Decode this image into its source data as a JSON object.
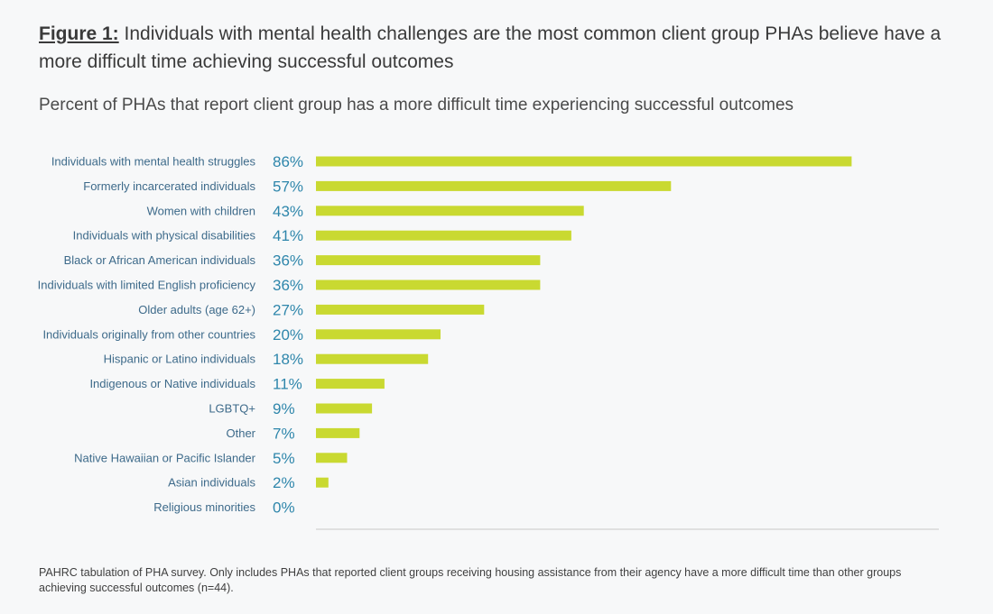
{
  "figure": {
    "label": "Figure 1:",
    "title": " Individuals with mental health challenges are the most common client group PHAs believe have a more difficult time achieving successful outcomes"
  },
  "colors": {
    "bar": "#c9d931",
    "value_text": "#2e86ab",
    "category_text": "#3d6a8a",
    "axis": "#c8c8c8"
  },
  "chart_data": {
    "type": "bar",
    "orientation": "horizontal",
    "title": "Percent of PHAs that report client group has a more difficult time experiencing successful outcomes",
    "categories": [
      "Individuals with mental health struggles",
      "Formerly incarcerated individuals",
      "Women with children",
      "Individuals with physical disabilities",
      "Black or African American individuals",
      "Individuals with limited English proficiency",
      "Older adults (age 62+)",
      "Individuals originally from other countries",
      "Hispanic or Latino individuals",
      "Indigenous or Native individuals",
      "LGBTQ+",
      "Other",
      "Native Hawaiian or Pacific Islander",
      "Asian individuals",
      "Religious minorities"
    ],
    "values": [
      86,
      57,
      43,
      41,
      36,
      36,
      27,
      20,
      18,
      11,
      9,
      7,
      5,
      2,
      0
    ],
    "value_labels": [
      "86%",
      "57%",
      "43%",
      "41%",
      "36%",
      "36%",
      "27%",
      "20%",
      "18%",
      "11%",
      "9%",
      "7%",
      "5%",
      "2%",
      "0%"
    ],
    "xlim": [
      0,
      100
    ],
    "grid": false,
    "legend": "none"
  },
  "footnote": "PAHRC tabulation of PHA survey. Only includes PHAs that reported client groups receiving housing assistance from their agency have a more difficult time than other groups achieving successful outcomes (n=44)."
}
